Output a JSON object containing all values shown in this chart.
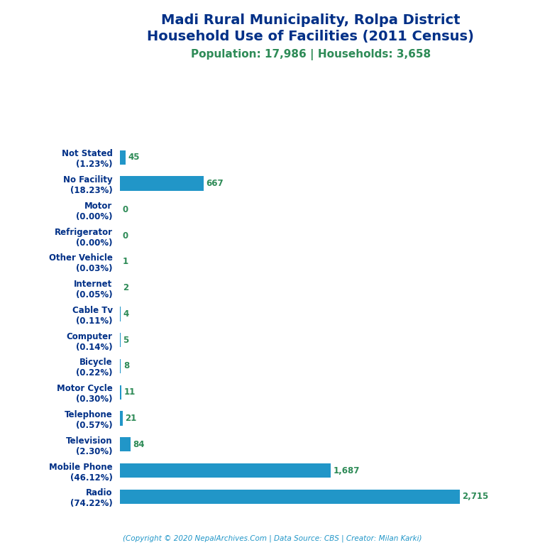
{
  "title_line1": "Madi Rural Municipality, Rolpa District",
  "title_line2": "Household Use of Facilities (2011 Census)",
  "subtitle": "Population: 17,986 | Households: 3,658",
  "title_color": "#003087",
  "subtitle_color": "#2e8b57",
  "footer": "(Copyright © 2020 NepalArchives.Com | Data Source: CBS | Creator: Milan Karki)",
  "footer_color": "#2196C8",
  "categories": [
    "Radio\n(74.22%)",
    "Mobile Phone\n(46.12%)",
    "Television\n(2.30%)",
    "Telephone\n(0.57%)",
    "Motor Cycle\n(0.30%)",
    "Bicycle\n(0.22%)",
    "Computer\n(0.14%)",
    "Cable Tv\n(0.11%)",
    "Internet\n(0.05%)",
    "Other Vehicle\n(0.03%)",
    "Refrigerator\n(0.00%)",
    "Motor\n(0.00%)",
    "No Facility\n(18.23%)",
    "Not Stated\n(1.23%)"
  ],
  "values": [
    2715,
    1687,
    84,
    21,
    11,
    8,
    5,
    4,
    2,
    1,
    0,
    0,
    667,
    45
  ],
  "bar_color": "#2196C8",
  "value_color": "#2e8b57",
  "background_color": "#ffffff",
  "xlim": [
    0,
    3050
  ],
  "title_fontsize": 14,
  "subtitle_fontsize": 11,
  "label_fontsize": 8.5,
  "value_fontsize": 8.5,
  "footer_fontsize": 7.5
}
